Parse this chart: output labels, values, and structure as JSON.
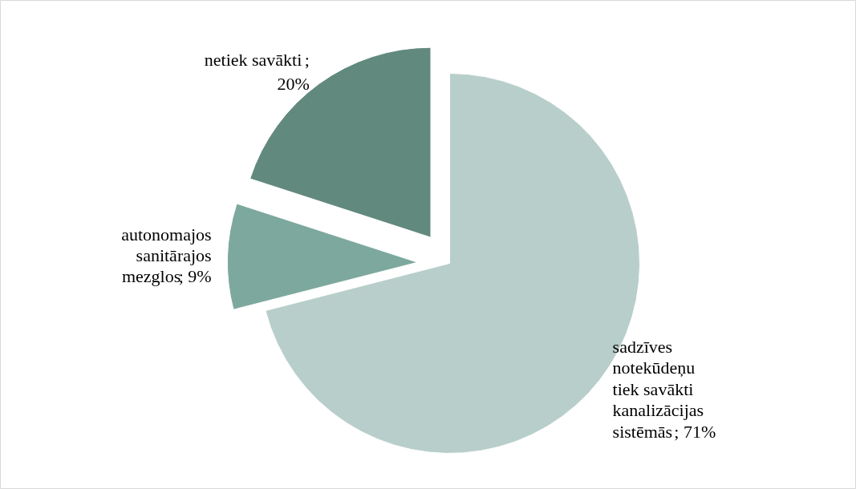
{
  "chart_data": {
    "type": "pie",
    "categories": [
      "sadzīves notekūdeņu tiek savākti kanalizācijas sistēmās",
      "autonomajos sanitārajos mezglos",
      "netiek savākti"
    ],
    "values": [
      71,
      9,
      20
    ],
    "colors": [
      "#b8ceca",
      "#7da89e",
      "#62897e"
    ],
    "value_labels": [
      "; 71%",
      "; 9%",
      ";\n20%"
    ]
  }
}
